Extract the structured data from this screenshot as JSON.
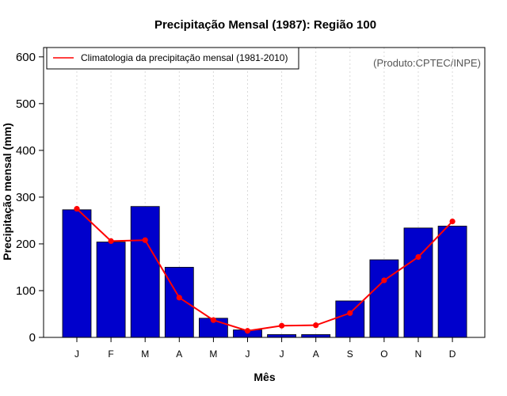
{
  "chart_data": {
    "type": "bar",
    "title": "Precipitação Mensal (1987): Região 100",
    "xlabel": "Mês",
    "ylabel": "Precipitação mensal (mm)",
    "categories": [
      "J",
      "F",
      "M",
      "A",
      "M",
      "J",
      "J",
      "A",
      "S",
      "O",
      "N",
      "D"
    ],
    "ylim": [
      0,
      620
    ],
    "yticks": [
      0,
      100,
      200,
      300,
      400,
      500,
      600
    ],
    "grid": "vertical dotted",
    "series": [
      {
        "name": "Precipitação mensal (1987)",
        "kind": "bar",
        "color": "#0000cc",
        "values": [
          273,
          204,
          280,
          150,
          41,
          16,
          6,
          6,
          78,
          166,
          234,
          238
        ]
      },
      {
        "name": "Climatologia da precipitação mensal (1981-2010)",
        "kind": "line",
        "color": "#ff0000",
        "values": [
          275,
          206,
          208,
          85,
          37,
          14,
          25,
          26,
          52,
          122,
          172,
          248
        ]
      }
    ],
    "legend": {
      "position": "top-left",
      "label": "Climatologia da precipitação mensal (1981-2010)"
    },
    "source_note": "(Produto:CPTEC/INPE)"
  }
}
